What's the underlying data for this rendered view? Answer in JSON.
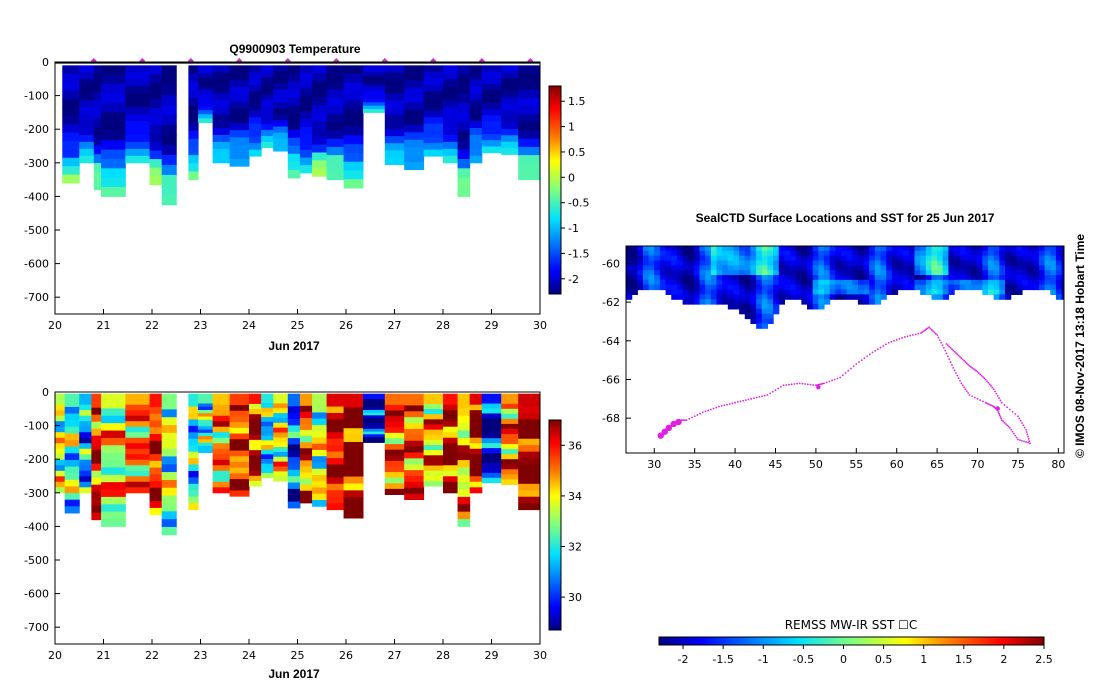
{
  "colors": {
    "jet": [
      "#00007f",
      "#0000ff",
      "#0080ff",
      "#00e0ff",
      "#7fff7f",
      "#ffff00",
      "#ff8000",
      "#ff0000",
      "#7f0000"
    ],
    "ocean_deep": "#0a2aa8",
    "ocean_mid": "#1456d8",
    "ice_green": "#3cc86e",
    "track": "#e020e0",
    "marker": "#cc33cc"
  },
  "chart_data": [
    {
      "id": "temperature",
      "type": "heatmap",
      "title": "Q9900903  Temperature",
      "xlabel": "Jun 2017",
      "xticks": [
        "20",
        "21",
        "22",
        "23",
        "24",
        "25",
        "26",
        "27",
        "28",
        "29",
        "30"
      ],
      "xlim": [
        20,
        30
      ],
      "yticks": [
        "0",
        "-100",
        "-200",
        "-300",
        "-400",
        "-500",
        "-600",
        "-700"
      ],
      "ylim": [
        -750,
        0
      ],
      "colorbar": {
        "min": -2.3,
        "max": 1.8,
        "ticks": [
          "-2",
          "-1.5",
          "-1",
          "-0.5",
          "0",
          "0.5",
          "1",
          "1.5"
        ]
      },
      "profiles_days": [
        20.8,
        21.8,
        22.8,
        23.8,
        24.8,
        25.8,
        26.8,
        27.8,
        28.8,
        29.8
      ],
      "profiles": [
        {
          "x0": 20.15,
          "x1": 20.5,
          "depth": 360
        },
        {
          "x0": 20.5,
          "x1": 20.8,
          "depth": 300
        },
        {
          "x0": 20.8,
          "x1": 20.95,
          "depth": 380
        },
        {
          "x0": 20.95,
          "x1": 21.45,
          "depth": 400
        },
        {
          "x0": 21.45,
          "x1": 21.95,
          "depth": 300
        },
        {
          "x0": 21.95,
          "x1": 22.2,
          "depth": 365
        },
        {
          "x0": 22.2,
          "x1": 22.5,
          "depth": 425
        },
        {
          "x0": 22.75,
          "x1": 22.95,
          "depth": 350
        },
        {
          "x0": 22.95,
          "x1": 23.25,
          "depth": 180
        },
        {
          "x0": 23.25,
          "x1": 23.6,
          "depth": 300
        },
        {
          "x0": 23.6,
          "x1": 24.0,
          "depth": 310
        },
        {
          "x0": 24.0,
          "x1": 24.25,
          "depth": 280
        },
        {
          "x0": 24.25,
          "x1": 24.5,
          "depth": 255
        },
        {
          "x0": 24.5,
          "x1": 24.8,
          "depth": 265
        },
        {
          "x0": 24.8,
          "x1": 25.05,
          "depth": 345
        },
        {
          "x0": 25.05,
          "x1": 25.3,
          "depth": 330
        },
        {
          "x0": 25.3,
          "x1": 25.6,
          "depth": 340
        },
        {
          "x0": 25.6,
          "x1": 25.95,
          "depth": 350
        },
        {
          "x0": 25.95,
          "x1": 26.35,
          "depth": 375
        },
        {
          "x0": 26.35,
          "x1": 26.8,
          "depth": 150
        },
        {
          "x0": 26.8,
          "x1": 27.2,
          "depth": 305
        },
        {
          "x0": 27.2,
          "x1": 27.6,
          "depth": 320
        },
        {
          "x0": 27.6,
          "x1": 28.0,
          "depth": 280
        },
        {
          "x0": 28.0,
          "x1": 28.3,
          "depth": 300
        },
        {
          "x0": 28.3,
          "x1": 28.55,
          "depth": 400
        },
        {
          "x0": 28.55,
          "x1": 28.8,
          "depth": 300
        },
        {
          "x0": 28.8,
          "x1": 29.2,
          "depth": 270
        },
        {
          "x0": 29.2,
          "x1": 29.55,
          "depth": 275
        },
        {
          "x0": 29.55,
          "x1": 30.0,
          "depth": 350
        }
      ]
    },
    {
      "id": "salinity",
      "type": "heatmap",
      "title": "",
      "xlabel": "Jun 2017",
      "xticks": [
        "20",
        "21",
        "22",
        "23",
        "24",
        "25",
        "26",
        "27",
        "28",
        "29",
        "30"
      ],
      "xlim": [
        20,
        30
      ],
      "yticks": [
        "0",
        "-100",
        "-200",
        "-300",
        "-400",
        "-500",
        "-600",
        "-700"
      ],
      "ylim": [
        -750,
        0
      ],
      "colorbar": {
        "min": 28.7,
        "max": 37.0,
        "ticks": [
          "30",
          "32",
          "34",
          "36"
        ]
      },
      "profiles": [
        {
          "x0": 20.0,
          "x1": 20.2,
          "depth": 300,
          "base": 0.55
        },
        {
          "x0": 20.2,
          "x1": 20.5,
          "depth": 360,
          "base": 0.45
        },
        {
          "x0": 20.5,
          "x1": 20.75,
          "depth": 300,
          "base": 0.3
        },
        {
          "x0": 20.75,
          "x1": 20.95,
          "depth": 380,
          "base": 0.85
        },
        {
          "x0": 20.95,
          "x1": 21.45,
          "depth": 400,
          "base": 0.6
        },
        {
          "x0": 21.45,
          "x1": 21.95,
          "depth": 300,
          "base": 0.72
        },
        {
          "x0": 21.95,
          "x1": 22.2,
          "depth": 365,
          "base": 0.9
        },
        {
          "x0": 22.2,
          "x1": 22.5,
          "depth": 425,
          "base": 0.5
        },
        {
          "x0": 22.75,
          "x1": 22.95,
          "depth": 350,
          "base": 0.4
        },
        {
          "x0": 22.95,
          "x1": 23.25,
          "depth": 180,
          "base": 0.45
        },
        {
          "x0": 23.25,
          "x1": 23.6,
          "depth": 300,
          "base": 0.7
        },
        {
          "x0": 23.6,
          "x1": 24.0,
          "depth": 310,
          "base": 0.85
        },
        {
          "x0": 24.0,
          "x1": 24.25,
          "depth": 280,
          "base": 0.9
        },
        {
          "x0": 24.25,
          "x1": 24.5,
          "depth": 255,
          "base": 0.4
        },
        {
          "x0": 24.5,
          "x1": 24.8,
          "depth": 265,
          "base": 0.6
        },
        {
          "x0": 24.8,
          "x1": 25.05,
          "depth": 345,
          "base": 0.2
        },
        {
          "x0": 25.05,
          "x1": 25.3,
          "depth": 330,
          "base": 0.75
        },
        {
          "x0": 25.3,
          "x1": 25.6,
          "depth": 340,
          "base": 0.55
        },
        {
          "x0": 25.6,
          "x1": 25.95,
          "depth": 350,
          "base": 0.95
        },
        {
          "x0": 25.95,
          "x1": 26.35,
          "depth": 375,
          "base": 0.95
        },
        {
          "x0": 26.35,
          "x1": 26.8,
          "depth": 150,
          "base": 0.1
        },
        {
          "x0": 26.8,
          "x1": 27.2,
          "depth": 305,
          "base": 0.8
        },
        {
          "x0": 27.2,
          "x1": 27.6,
          "depth": 320,
          "base": 0.8
        },
        {
          "x0": 27.6,
          "x1": 28.0,
          "depth": 280,
          "base": 0.7
        },
        {
          "x0": 28.0,
          "x1": 28.3,
          "depth": 300,
          "base": 0.9
        },
        {
          "x0": 28.3,
          "x1": 28.55,
          "depth": 400,
          "base": 0.7
        },
        {
          "x0": 28.55,
          "x1": 28.8,
          "depth": 300,
          "base": 0.95
        },
        {
          "x0": 28.8,
          "x1": 29.2,
          "depth": 270,
          "base": 0.1
        },
        {
          "x0": 29.2,
          "x1": 29.55,
          "depth": 275,
          "base": 0.75
        },
        {
          "x0": 29.55,
          "x1": 30.0,
          "depth": 350,
          "base": 0.97
        }
      ]
    },
    {
      "id": "map",
      "type": "heatmap",
      "title": "SealCTD Surface Locations and SST for 25 Jun 2017",
      "xlim": [
        26.5,
        80.7
      ],
      "ylim": [
        -69.8,
        -59.1
      ],
      "xticks": [
        "30",
        "35",
        "40",
        "45",
        "50",
        "55",
        "60",
        "65",
        "70",
        "75",
        "80"
      ],
      "yticks": [
        "-60",
        "-62",
        "-64",
        "-66",
        "-68"
      ],
      "colorbar": {
        "label": "REMSS MW-IR SST ☐C",
        "min": -2.3,
        "max": 2.5,
        "ticks": [
          "-2",
          "-1.5",
          "-1",
          "-0.5",
          "0",
          "0.5",
          "1",
          "1.5",
          "2",
          "2.5"
        ]
      },
      "track": [
        [
          31,
          -68.7
        ],
        [
          32,
          -68.4
        ],
        [
          33,
          -68.1
        ],
        [
          34,
          -68.1
        ],
        [
          36,
          -67.7
        ],
        [
          38,
          -67.4
        ],
        [
          40,
          -67.2
        ],
        [
          42,
          -67.0
        ],
        [
          44,
          -66.8
        ],
        [
          46,
          -66.3
        ],
        [
          48,
          -66.2
        ],
        [
          50,
          -66.3
        ],
        [
          51,
          -66.2
        ],
        [
          53,
          -65.9
        ],
        [
          55,
          -65.2
        ],
        [
          57,
          -64.6
        ],
        [
          59,
          -64.1
        ],
        [
          61,
          -63.8
        ],
        [
          63,
          -63.6
        ],
        [
          64,
          -63.3
        ],
        [
          65,
          -63.7
        ],
        [
          66,
          -64.5
        ],
        [
          67,
          -65.4
        ],
        [
          68,
          -66.2
        ],
        [
          69,
          -66.8
        ],
        [
          71,
          -67.2
        ],
        [
          72,
          -67.4
        ],
        [
          72.5,
          -67.6
        ],
        [
          73,
          -68.1
        ],
        [
          74,
          -68.5
        ],
        [
          75,
          -69.1
        ],
        [
          76.5,
          -69.3
        ],
        [
          76,
          -68.6
        ],
        [
          75,
          -67.9
        ],
        [
          73,
          -67.2
        ],
        [
          72,
          -66.5
        ],
        [
          71,
          -66.0
        ],
        [
          70,
          -65.6
        ],
        [
          69,
          -65.3
        ],
        [
          68,
          -64.9
        ],
        [
          67,
          -64.5
        ],
        [
          66,
          -64.1
        ]
      ],
      "clusters": [
        [
          30.8,
          -68.9
        ],
        [
          31.3,
          -68.7
        ],
        [
          31.8,
          -68.5
        ],
        [
          32.4,
          -68.3
        ],
        [
          33.0,
          -68.2
        ],
        [
          50.3,
          -66.4
        ],
        [
          72.5,
          -67.5
        ]
      ]
    }
  ],
  "footer": {
    "stamp": "©  IMOS 08-Nov-2017 13:18 Hobart Time"
  }
}
